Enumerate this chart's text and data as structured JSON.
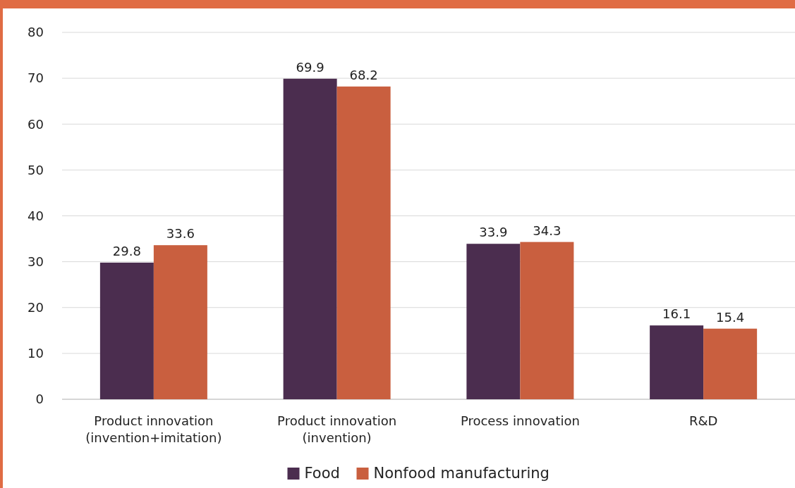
{
  "chart_data": {
    "type": "bar",
    "categories": [
      "Product innovation\n(invention+imitation)",
      "Product innovation\n(invention)",
      "Process innovation",
      "R&D"
    ],
    "series": [
      {
        "name": "Food",
        "color": "#4b2d4f",
        "values": [
          29.8,
          69.9,
          33.9,
          16.1
        ]
      },
      {
        "name": "Nonfood manufacturing",
        "color": "#c95f3f",
        "values": [
          33.6,
          68.2,
          34.3,
          15.4
        ]
      }
    ],
    "ylim": [
      0,
      80
    ],
    "yticks": [
      0,
      10,
      20,
      30,
      40,
      50,
      60,
      70,
      80
    ],
    "grid": "y",
    "legend": "bottom",
    "data_labels": true
  }
}
